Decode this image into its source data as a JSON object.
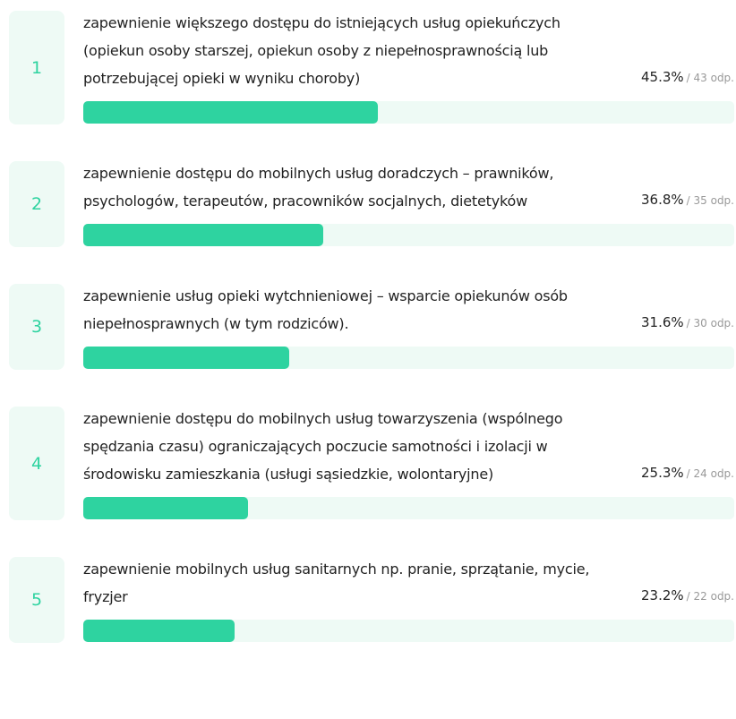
{
  "items": [
    {
      "rank": 1,
      "label": "zapewnienie większego dostępu do istniejących usług opiekuńczych (opiekun osoby starszej, opiekun osoby z niepełnosprawnością lub potrzebującej opieki w wyniku choroby)",
      "value": 45.3,
      "value_label": "45.3%",
      "count_label": "/ 43 odp."
    },
    {
      "rank": 2,
      "label": "zapewnienie dostępu do mobilnych usług doradczych – prawników, psychologów, terapeutów, pracowników socjalnych, dietetyków",
      "value": 36.8,
      "value_label": "36.8%",
      "count_label": "/ 35 odp."
    },
    {
      "rank": 3,
      "label": "zapewnienie usług opieki wytchnieniowej – wsparcie opiekunów osób niepełnosprawnych (w tym rodziców).",
      "value": 31.6,
      "value_label": "31.6%",
      "count_label": "/ 30 odp."
    },
    {
      "rank": 4,
      "label": "zapewnienie dostępu do mobilnych usług towarzyszenia (wspólnego spędzania czasu) ograniczających poczucie samotności i izolacji w środowisku zamieszkania (usługi sąsiedzkie, wolontaryjne)",
      "value": 25.3,
      "value_label": "25.3%",
      "count_label": "/ 24 odp."
    },
    {
      "rank": 5,
      "label": "zapewnienie mobilnych usług sanitarnych np. pranie, sprzątanie, mycie, fryzjer",
      "value": 23.2,
      "value_label": "23.2%",
      "count_label": "/ 22 odp."
    }
  ],
  "scale": [
    0,
    100
  ]
}
